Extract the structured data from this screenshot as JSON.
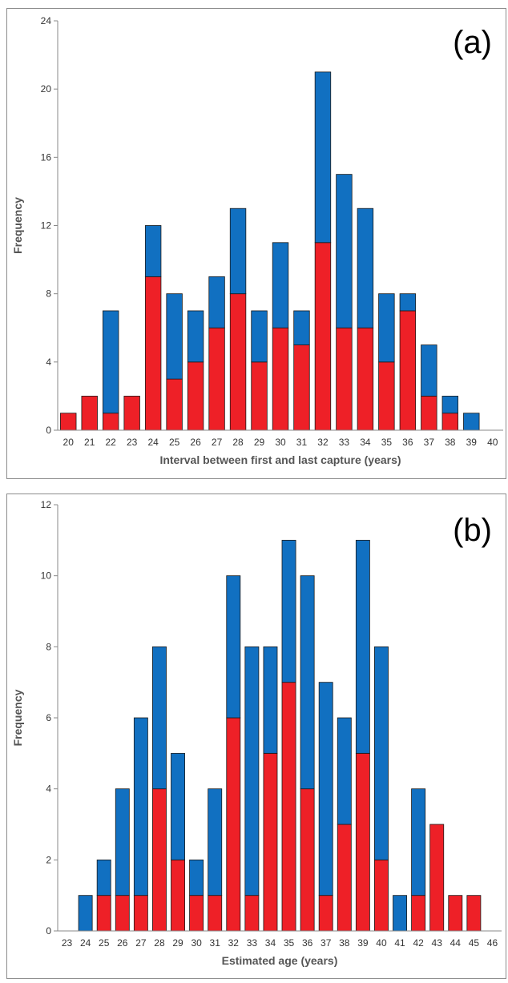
{
  "colors": {
    "blue": "#1170c1",
    "red": "#ee2027"
  },
  "chart_data": [
    {
      "type": "bar",
      "stacked": true,
      "panel_label": "(a)",
      "title": "",
      "xlabel": "Interval between first and last capture (years)",
      "ylabel": "Frequency",
      "ylim": [
        0,
        24
      ],
      "yticks": [
        0,
        4,
        8,
        12,
        16,
        20,
        24
      ],
      "grid": false,
      "categories": [
        "20",
        "21",
        "22",
        "23",
        "24",
        "25",
        "26",
        "27",
        "28",
        "29",
        "30",
        "31",
        "32",
        "33",
        "34",
        "35",
        "36",
        "37",
        "38",
        "39",
        "40"
      ],
      "series": [
        {
          "color": "red",
          "values": [
            1,
            2,
            1,
            2,
            9,
            3,
            4,
            6,
            8,
            4,
            6,
            5,
            11,
            6,
            6,
            4,
            7,
            2,
            1,
            0,
            0
          ]
        },
        {
          "color": "blue",
          "values": [
            0,
            0,
            6,
            0,
            3,
            5,
            3,
            3,
            5,
            3,
            5,
            2,
            10,
            9,
            7,
            4,
            1,
            3,
            1,
            1,
            0
          ]
        }
      ]
    },
    {
      "type": "bar",
      "stacked": true,
      "panel_label": "(b)",
      "title": "",
      "xlabel": "Estimated age (years)",
      "ylabel": "Frequency",
      "ylim": [
        0,
        12
      ],
      "yticks": [
        0,
        2,
        4,
        6,
        8,
        10,
        12
      ],
      "grid": false,
      "categories": [
        "23",
        "24",
        "25",
        "26",
        "27",
        "28",
        "29",
        "30",
        "31",
        "32",
        "33",
        "34",
        "35",
        "36",
        "37",
        "38",
        "39",
        "40",
        "41",
        "42",
        "43",
        "44",
        "45",
        "46"
      ],
      "series": [
        {
          "color": "red",
          "values": [
            0,
            0,
            1,
            1,
            1,
            4,
            2,
            1,
            1,
            6,
            1,
            5,
            7,
            4,
            1,
            3,
            5,
            2,
            0,
            1,
            3,
            1,
            1,
            0
          ]
        },
        {
          "color": "blue",
          "values": [
            0,
            1,
            1,
            3,
            5,
            4,
            3,
            1,
            3,
            4,
            7,
            3,
            4,
            6,
            6,
            3,
            6,
            6,
            1,
            3,
            0,
            0,
            0,
            0
          ]
        }
      ]
    }
  ]
}
